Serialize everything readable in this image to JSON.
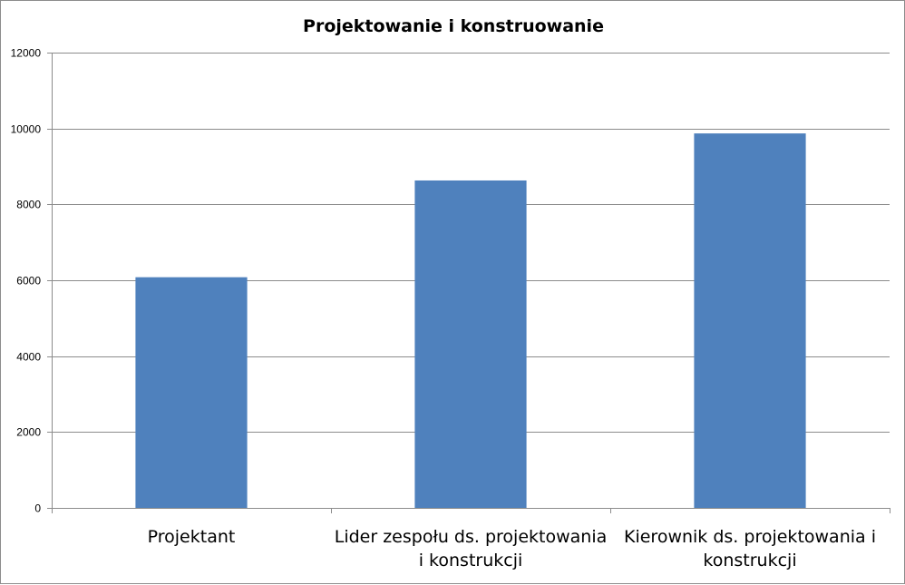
{
  "chart_data": {
    "type": "bar",
    "title": "Projektowanie i konstruowanie",
    "categories": [
      [
        "Projektant"
      ],
      [
        "Lider zespołu ds. projektowania",
        "i konstrukcji"
      ],
      [
        "Kierownik ds. projektowania i",
        "konstrukcji"
      ]
    ],
    "values": [
      6080,
      8630,
      9870
    ],
    "ylim": [
      0,
      12000
    ],
    "yticks": [
      0,
      2000,
      4000,
      6000,
      8000,
      10000,
      12000
    ],
    "grid": true,
    "legend": "none",
    "bar_color": "#4f81bd",
    "grid_color": "#8c8c8c"
  }
}
